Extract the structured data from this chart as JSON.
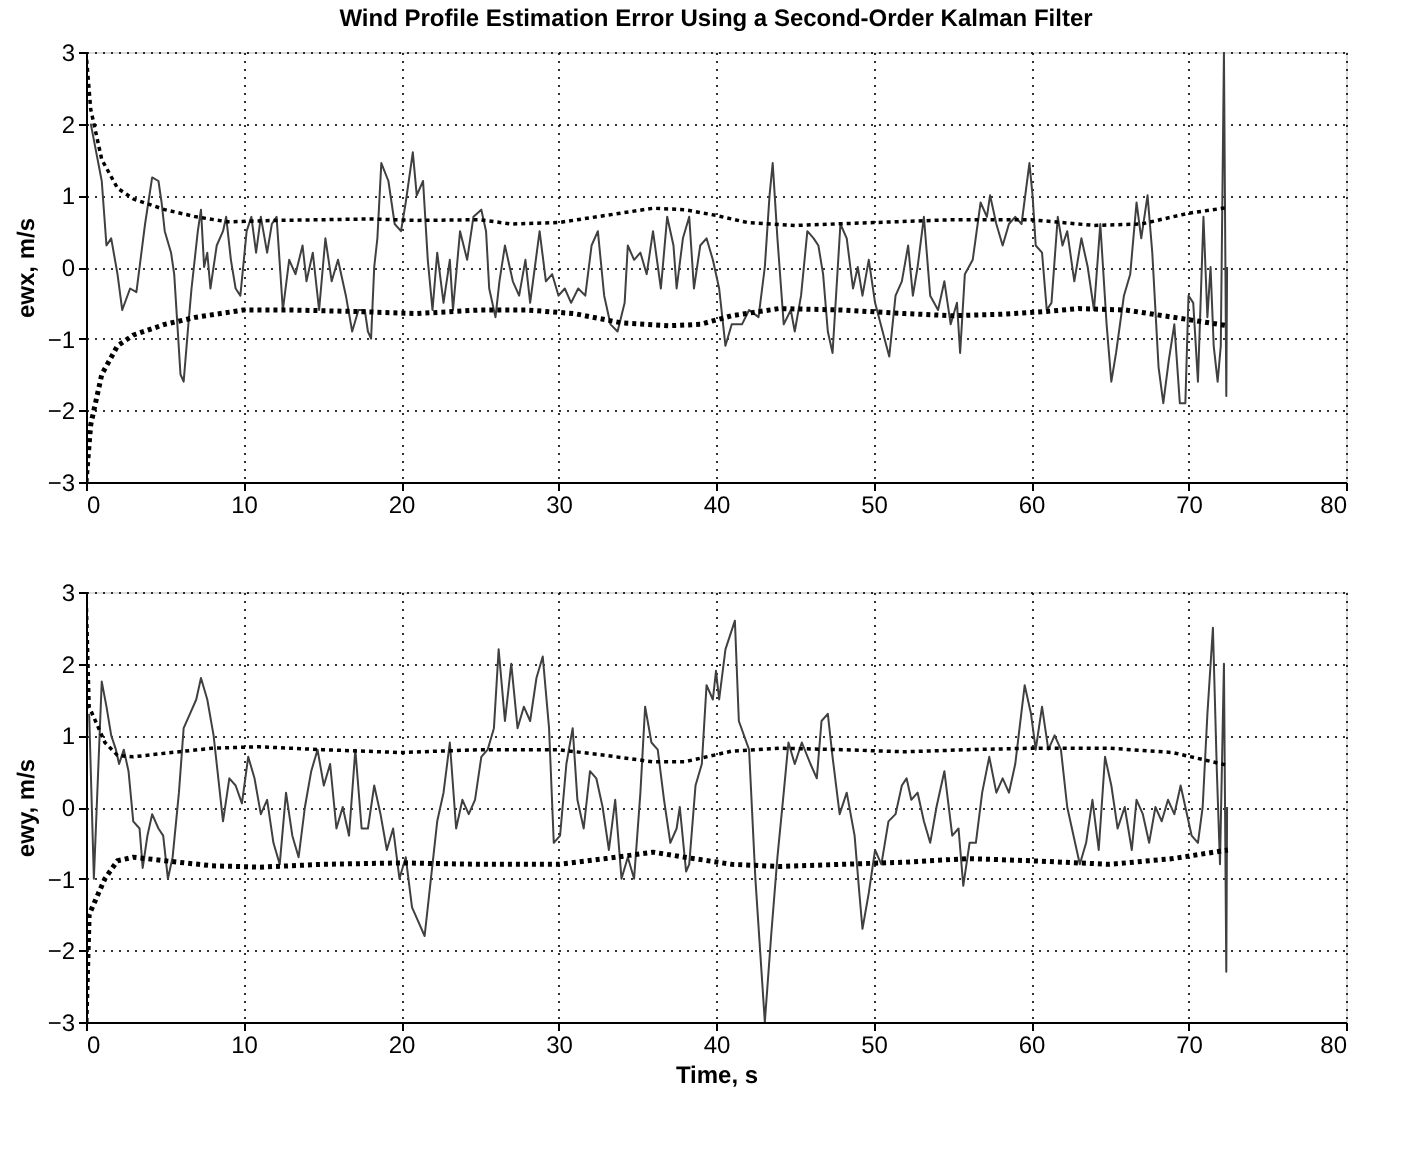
{
  "chart_data": [
    {
      "type": "line",
      "title": "Wind Profile Estimation Error Using a Second-Order Kalman Filter",
      "ylabel": "ewx, m/s",
      "xlim": [
        0,
        80
      ],
      "xticks": [
        0,
        10,
        20,
        30,
        40,
        50,
        60,
        70,
        80
      ],
      "ylim": [
        -3,
        3
      ],
      "yticks": [
        -3,
        -2,
        -1,
        0,
        1,
        2,
        3
      ],
      "grid": true,
      "series": [
        {
          "color": "#404040",
          "line_style": "solid",
          "x": [
            0.3,
            1,
            1.3,
            1.6,
            2,
            2.3,
            2.8,
            3.2,
            3.75,
            4.2,
            4.6,
            4.8,
            5.0,
            5.4,
            5.6,
            6.0,
            6.2,
            6.5,
            6.7,
            7.1,
            7.3,
            7.5,
            7.7,
            7.9,
            8.3,
            8.7,
            8.9,
            9.2,
            9.5,
            9.8,
            10.2,
            10.5,
            10.8,
            11.1,
            11.5,
            11.8,
            12.1,
            12.5,
            12.9,
            13.3,
            13.75,
            14.0,
            14.4,
            14.8,
            15.2,
            15.6,
            16.0,
            16.5,
            16.9,
            17.3,
            17.7,
            17.9,
            18.1,
            18.3,
            18.5,
            18.75,
            19.2,
            19.6,
            20.0,
            20.3,
            20.75,
            21.0,
            21.4,
            21.7,
            22.0,
            22.3,
            22.7,
            23.1,
            23.3,
            23.75,
            24.2,
            24.6,
            25.1,
            25.4,
            25.6,
            26.0,
            26.25,
            26.6,
            27.1,
            27.5,
            27.9,
            28.2,
            28.5,
            28.8,
            29.2,
            29.6,
            30.0,
            30.4,
            30.8,
            31.25,
            31.7,
            32.1,
            32.5,
            32.9,
            33.3,
            33.75,
            34.2,
            34.4,
            34.8,
            35.2,
            35.6,
            36.0,
            36.5,
            36.9,
            37.3,
            37.5,
            37.9,
            38.3,
            38.6,
            39.0,
            39.4,
            39.8,
            40.2,
            40.6,
            41.0,
            41.65,
            42.1,
            42.7,
            43.1,
            43.4,
            43.6,
            43.9,
            44.3,
            44.75,
            45.0,
            45.4,
            45.8,
            46.2,
            46.5,
            46.8,
            47.1,
            47.4,
            47.9,
            48.3,
            48.7,
            49.0,
            49.3,
            49.7,
            50.1,
            50.7,
            51.0,
            51.4,
            51.8,
            52.2,
            52.5,
            52.8,
            53.2,
            53.6,
            54.1,
            54.5,
            54.9,
            55.3,
            55.5,
            55.8,
            56.3,
            56.8,
            57.2,
            57.4,
            57.8,
            58.2,
            58.6,
            59.0,
            59.4,
            59.9,
            60.1,
            60.3,
            60.7,
            61.0,
            61.3,
            61.7,
            62.0,
            62.3,
            62.75,
            63.2,
            63.6,
            64.0,
            64.4,
            64.8,
            65.1,
            65.4,
            65.9,
            66.3,
            66.7,
            67.0,
            67.4,
            67.7,
            68.1,
            68.4,
            68.75,
            69.1,
            69.45,
            69.8,
            70.0,
            70.3,
            70.6,
            70.95,
            71.2,
            71.4,
            71.6,
            71.85,
            72.05,
            72.25,
            72.4,
            72.45
          ],
          "values": [
            2.0,
            1.2,
            0.3,
            0.4,
            -0.1,
            -0.6,
            -0.3,
            -0.35,
            0.6,
            1.25,
            1.2,
            0.9,
            0.5,
            0.2,
            -0.1,
            -1.5,
            -1.6,
            -0.8,
            -0.3,
            0.5,
            0.8,
            0.0,
            0.2,
            -0.3,
            0.3,
            0.5,
            0.7,
            0.1,
            -0.3,
            -0.4,
            0.5,
            0.7,
            0.2,
            0.7,
            0.2,
            0.6,
            0.7,
            -0.6,
            0.1,
            -0.1,
            0.3,
            -0.2,
            0.2,
            -0.6,
            0.4,
            -0.2,
            0.1,
            -0.4,
            -0.9,
            -0.6,
            -0.6,
            -0.9,
            -1.0,
            0.0,
            0.4,
            1.45,
            1.2,
            0.6,
            0.5,
            0.9,
            1.6,
            1.0,
            1.2,
            0.1,
            -0.6,
            0.2,
            -0.5,
            0.1,
            -0.6,
            0.5,
            0.1,
            0.7,
            0.8,
            0.5,
            -0.3,
            -0.7,
            -0.2,
            0.3,
            -0.2,
            -0.4,
            0.1,
            -0.5,
            0.0,
            0.5,
            -0.2,
            -0.1,
            -0.4,
            -0.3,
            -0.5,
            -0.3,
            -0.4,
            0.3,
            0.5,
            -0.4,
            -0.8,
            -0.9,
            -0.5,
            0.3,
            0.1,
            0.2,
            -0.1,
            0.5,
            -0.3,
            0.7,
            0.3,
            -0.3,
            0.4,
            0.7,
            -0.3,
            0.3,
            0.4,
            0.1,
            -0.3,
            -1.1,
            -0.8,
            -0.8,
            -0.6,
            -0.7,
            0.0,
            1.0,
            1.45,
            0.4,
            -0.8,
            -0.6,
            -0.9,
            -0.4,
            0.5,
            0.4,
            0.3,
            -0.1,
            -0.9,
            -1.2,
            0.6,
            0.4,
            -0.3,
            0.0,
            -0.4,
            0.1,
            -0.5,
            -1.0,
            -1.25,
            -0.4,
            -0.2,
            0.3,
            -0.4,
            0.0,
            0.7,
            -0.4,
            -0.6,
            -0.2,
            -0.8,
            -0.5,
            -1.2,
            -0.1,
            0.1,
            0.9,
            0.7,
            1.0,
            0.6,
            0.3,
            0.6,
            0.7,
            0.6,
            1.45,
            1.0,
            0.3,
            0.2,
            -0.6,
            -0.5,
            0.7,
            0.3,
            0.5,
            -0.2,
            0.4,
            0.0,
            -0.6,
            0.6,
            -0.8,
            -1.6,
            -1.2,
            -0.4,
            -0.1,
            0.9,
            0.4,
            1.0,
            0.2,
            -1.4,
            -1.9,
            -1.3,
            -0.8,
            -1.9,
            -1.9,
            -0.4,
            -0.5,
            -1.6,
            0.7,
            -0.7,
            0.0,
            -1.1,
            -1.6,
            -1.1,
            3.0,
            -1.8,
            0.0
          ]
        },
        {
          "color": "#000000",
          "line_style": "dotted",
          "x": [
            0,
            0.3,
            1,
            2,
            3,
            5,
            7,
            9,
            12,
            15,
            18,
            21,
            25,
            27,
            30,
            33,
            36,
            38,
            40,
            42,
            45,
            50,
            55,
            60,
            64,
            67,
            70,
            72.5
          ],
          "values": [
            3,
            2.2,
            1.5,
            1.1,
            0.95,
            0.8,
            0.7,
            0.63,
            0.65,
            0.66,
            0.67,
            0.65,
            0.66,
            0.6,
            0.62,
            0.72,
            0.82,
            0.8,
            0.72,
            0.62,
            0.58,
            0.62,
            0.66,
            0.66,
            0.58,
            0.6,
            0.75,
            0.83
          ]
        },
        {
          "color": "#000000",
          "line_style": "dotted",
          "x": [
            0,
            0.3,
            1,
            2,
            3,
            5,
            7,
            10,
            13,
            17,
            21,
            25,
            28,
            31,
            34,
            37,
            39,
            41,
            44,
            48,
            52,
            55,
            58,
            61,
            63,
            66,
            69,
            72.5
          ],
          "values": [
            -3,
            -2.2,
            -1.5,
            -1.1,
            -0.95,
            -0.8,
            -0.7,
            -0.6,
            -0.6,
            -0.62,
            -0.65,
            -0.6,
            -0.6,
            -0.65,
            -0.78,
            -0.82,
            -0.8,
            -0.68,
            -0.58,
            -0.6,
            -0.65,
            -0.68,
            -0.66,
            -0.62,
            -0.58,
            -0.6,
            -0.7,
            -0.82
          ]
        }
      ]
    },
    {
      "type": "line",
      "xlabel": "Time, s",
      "ylabel": "ewy, m/s",
      "xlim": [
        0,
        80
      ],
      "xticks": [
        0,
        10,
        20,
        30,
        40,
        50,
        60,
        70,
        80
      ],
      "ylim": [
        -3,
        3
      ],
      "yticks": [
        -3,
        -2,
        -1,
        0,
        1,
        2,
        3
      ],
      "grid": true,
      "series": [
        {
          "color": "#404040",
          "line_style": "solid",
          "x": [
            0.2,
            0.5,
            1.0,
            1.3,
            1.6,
            1.9,
            2.1,
            2.4,
            2.7,
            3.0,
            3.4,
            3.6,
            3.9,
            4.2,
            4.6,
            4.9,
            5.2,
            5.5,
            5.9,
            6.2,
            6.6,
            7.0,
            7.3,
            7.7,
            8.1,
            8.5,
            8.7,
            9.1,
            9.5,
            9.9,
            10.3,
            10.7,
            11.1,
            11.5,
            11.9,
            12.3,
            12.7,
            13.1,
            13.5,
            13.9,
            14.3,
            14.7,
            15.1,
            15.5,
            15.9,
            16.3,
            16.7,
            17.1,
            17.5,
            17.9,
            18.3,
            18.7,
            19.1,
            19.5,
            19.9,
            20.3,
            20.7,
            21.1,
            21.5,
            21.9,
            22.3,
            22.7,
            23.1,
            23.5,
            23.9,
            24.3,
            24.7,
            25.1,
            25.5,
            25.9,
            26.2,
            26.6,
            27.0,
            27.4,
            27.8,
            28.2,
            28.6,
            29.0,
            29.4,
            29.7,
            30.1,
            30.5,
            30.9,
            31.2,
            31.6,
            32.0,
            32.4,
            32.8,
            33.2,
            33.6,
            34.0,
            34.4,
            34.8,
            35.2,
            35.5,
            35.9,
            36.3,
            36.7,
            37.1,
            37.5,
            37.7,
            38.1,
            38.3,
            38.7,
            39.1,
            39.4,
            39.8,
            40.0,
            40.2,
            40.6,
            41.2,
            41.45,
            42.1,
            42.5,
            42.8,
            43.1,
            43.5,
            43.9,
            44.3,
            44.6,
            45.0,
            45.45,
            46.0,
            46.4,
            46.7,
            47.1,
            47.4,
            47.85,
            48.3,
            48.8,
            49.1,
            49.3,
            49.7,
            50.1,
            50.5,
            50.95,
            51.4,
            51.8,
            52.1,
            52.4,
            52.8,
            53.2,
            53.6,
            54.0,
            54.5,
            55.0,
            55.4,
            55.7,
            56.1,
            56.5,
            56.9,
            57.35,
            57.8,
            58.2,
            58.6,
            59.0,
            59.6,
            60.0,
            60.3,
            60.7,
            61.1,
            61.5,
            61.9,
            62.3,
            62.7,
            63.1,
            63.5,
            63.9,
            64.3,
            64.7,
            65.1,
            65.5,
            65.95,
            66.4,
            66.7,
            67.1,
            67.5,
            67.9,
            68.3,
            68.7,
            69.1,
            69.5,
            69.8,
            70.2,
            70.6,
            70.9,
            71.2,
            71.55,
            71.8,
            72.0,
            72.25,
            72.4,
            72.45
          ],
          "values": [
            1.3,
            -1.0,
            1.75,
            1.4,
            1.0,
            0.8,
            0.6,
            0.8,
            0.5,
            -0.2,
            -0.3,
            -0.85,
            -0.4,
            -0.1,
            -0.3,
            -0.4,
            -1.0,
            -0.7,
            0.2,
            1.1,
            1.3,
            1.5,
            1.8,
            1.5,
            1.0,
            0.2,
            -0.2,
            0.4,
            0.3,
            0.05,
            0.7,
            0.4,
            -0.1,
            0.1,
            -0.5,
            -0.8,
            0.2,
            -0.4,
            -0.7,
            0.0,
            0.5,
            0.8,
            0.3,
            0.6,
            -0.3,
            0.0,
            -0.4,
            0.8,
            -0.3,
            -0.3,
            0.3,
            -0.1,
            -0.6,
            -0.3,
            -1.0,
            -0.7,
            -1.4,
            -1.6,
            -1.8,
            -1.0,
            -0.2,
            0.2,
            0.9,
            -0.3,
            0.1,
            -0.1,
            0.1,
            0.7,
            0.8,
            1.1,
            2.2,
            1.2,
            2.0,
            1.1,
            1.4,
            1.2,
            1.8,
            2.1,
            1.1,
            -0.5,
            -0.4,
            0.6,
            1.1,
            0.1,
            -0.3,
            0.5,
            0.4,
            0.0,
            -0.6,
            0.1,
            -1.0,
            -0.7,
            -1.0,
            0.2,
            1.4,
            0.9,
            0.8,
            0.1,
            -0.5,
            -0.3,
            0.0,
            -0.9,
            -0.8,
            0.3,
            0.6,
            1.7,
            1.5,
            1.9,
            1.5,
            2.2,
            2.6,
            1.2,
            0.8,
            -1.0,
            -2.0,
            -3.0,
            -1.8,
            -0.7,
            0.2,
            0.9,
            0.6,
            0.9,
            0.6,
            0.4,
            1.2,
            1.3,
            0.7,
            -0.1,
            0.2,
            -0.4,
            -1.2,
            -1.7,
            -1.2,
            -0.6,
            -0.8,
            -0.2,
            -0.1,
            0.3,
            0.4,
            0.1,
            0.2,
            -0.2,
            -0.5,
            0.0,
            0.5,
            -0.4,
            -0.3,
            -1.1,
            -0.5,
            -0.5,
            0.2,
            0.7,
            0.2,
            0.4,
            0.2,
            0.6,
            1.7,
            1.3,
            0.8,
            1.4,
            0.8,
            1.0,
            0.8,
            0.0,
            -0.4,
            -0.8,
            -0.5,
            0.1,
            -0.6,
            0.7,
            0.3,
            -0.3,
            0.0,
            -0.6,
            0.1,
            -0.1,
            -0.5,
            0.0,
            -0.2,
            0.1,
            -0.1,
            0.3,
            0.0,
            -0.4,
            -0.5,
            0.0,
            1.3,
            2.5,
            0.5,
            -0.8,
            2.0,
            -2.3,
            0.0
          ]
        },
        {
          "color": "#000000",
          "line_style": "dotted",
          "x": [
            0,
            0.2,
            0.6,
            1.2,
            2,
            3,
            5,
            8,
            11,
            15,
            20,
            25,
            30,
            33,
            36,
            38,
            41,
            44,
            48,
            52,
            56,
            60,
            65,
            69,
            72.5
          ],
          "values": [
            3,
            1.4,
            1.2,
            0.9,
            0.72,
            0.7,
            0.75,
            0.82,
            0.84,
            0.8,
            0.76,
            0.8,
            0.8,
            0.72,
            0.63,
            0.63,
            0.78,
            0.82,
            0.8,
            0.77,
            0.8,
            0.82,
            0.82,
            0.76,
            0.58
          ]
        },
        {
          "color": "#000000",
          "line_style": "dotted",
          "x": [
            0,
            0.2,
            0.6,
            1.2,
            2,
            3,
            5,
            8,
            11,
            15,
            20,
            25,
            30,
            33,
            36,
            38,
            41,
            44,
            48,
            52,
            56,
            60,
            65,
            69,
            72.5
          ],
          "values": [
            -3,
            -1.5,
            -1.3,
            -1.0,
            -0.75,
            -0.7,
            -0.75,
            -0.82,
            -0.84,
            -0.8,
            -0.78,
            -0.8,
            -0.8,
            -0.72,
            -0.63,
            -0.7,
            -0.8,
            -0.83,
            -0.8,
            -0.77,
            -0.72,
            -0.75,
            -0.8,
            -0.72,
            -0.6
          ]
        }
      ]
    }
  ]
}
